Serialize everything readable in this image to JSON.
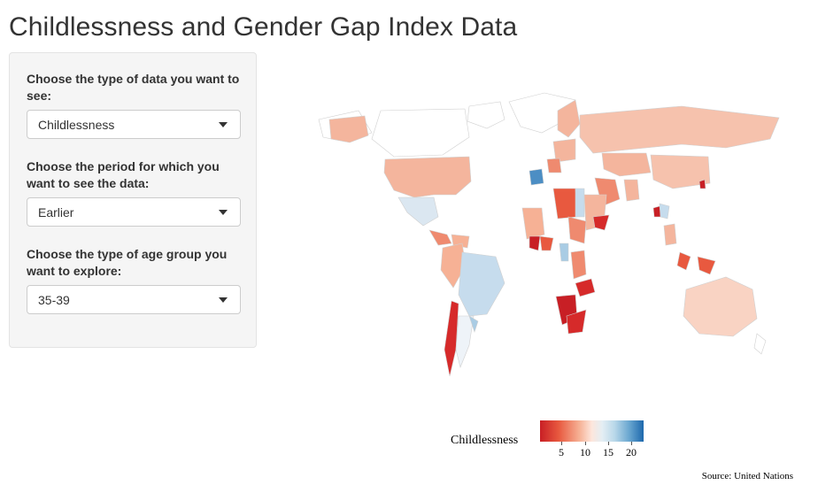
{
  "page": {
    "title": "Childlessness and Gender Gap Index Data"
  },
  "controls": [
    {
      "label": "Choose the type of data you want to see:",
      "value": "Childlessness"
    },
    {
      "label": "Choose the period for which you want to see the data:",
      "value": "Earlier"
    },
    {
      "label": "Choose the type of age group you want to explore:",
      "value": "35-39"
    }
  ],
  "legend": {
    "title": "Childlessness",
    "ticks": [
      "5",
      "10",
      "15",
      "20"
    ],
    "colors": {
      "low": "#c81f25",
      "mid": "#fde6dc",
      "high": "#1d68ad"
    }
  },
  "source": "Source: United Nations"
}
